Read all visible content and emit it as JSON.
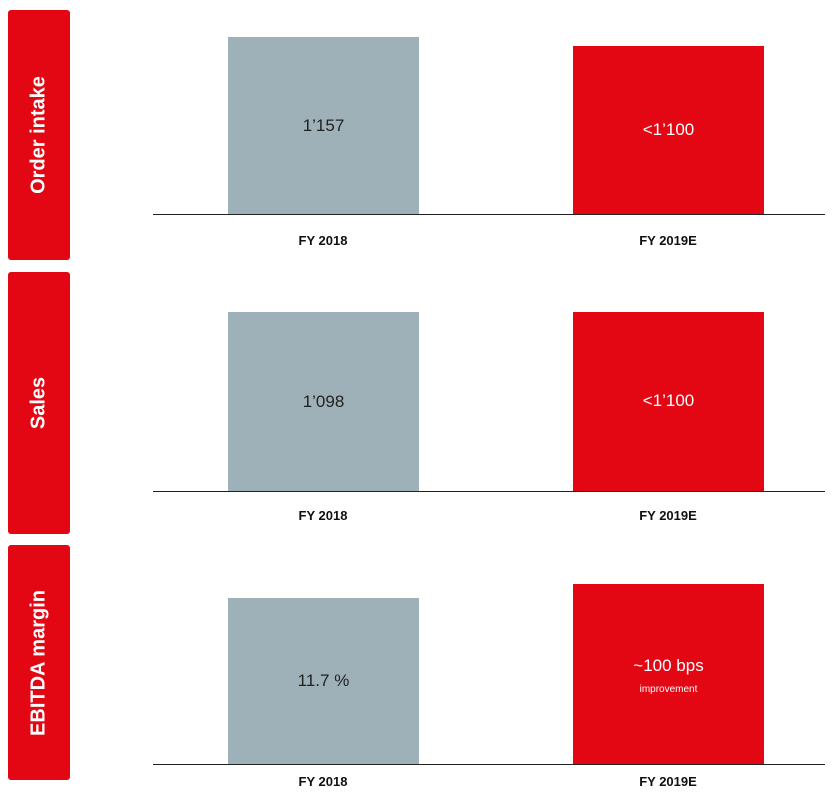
{
  "colors": {
    "accent": "#e30613",
    "fy2018": "#9eb1b9",
    "fy2019e": "#e30613"
  },
  "chart_data": [
    {
      "type": "bar",
      "title": "Order intake",
      "categories": [
        "FY 2018",
        "FY 2019E"
      ],
      "values": [
        1157,
        1100
      ],
      "data_labels": [
        "1’157",
        "<1’100"
      ]
    },
    {
      "type": "bar",
      "title": "Sales",
      "categories": [
        "FY 2018",
        "FY 2019E"
      ],
      "values": [
        1098,
        1100
      ],
      "data_labels": [
        "1’098",
        "<1’100"
      ]
    },
    {
      "type": "bar",
      "title": "EBITDA margin",
      "categories": [
        "FY 2018",
        "FY 2019E"
      ],
      "values": [
        11.7,
        12.7
      ],
      "data_labels": [
        "11.7 %",
        "~100 bps"
      ],
      "data_sublabels": [
        "",
        "improvement"
      ]
    }
  ]
}
